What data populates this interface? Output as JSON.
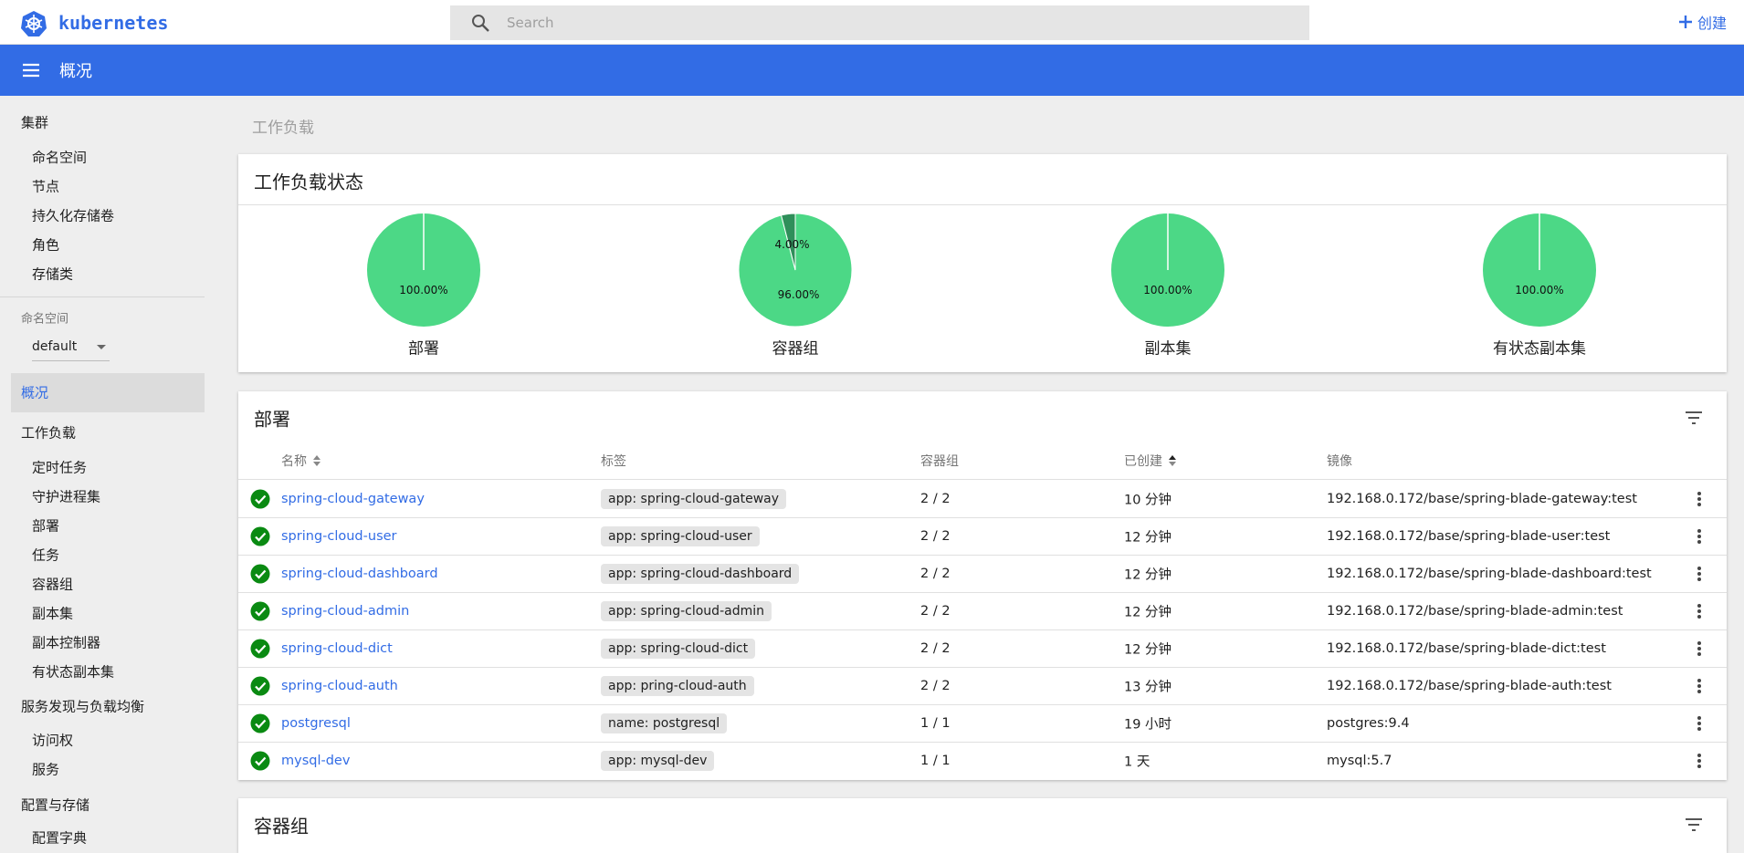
{
  "header": {
    "logo": "kubernetes",
    "search_placeholder": "Search",
    "create": "创建"
  },
  "toolbar": {
    "title": "概况"
  },
  "sidebar": {
    "cluster": "集群",
    "cluster_items": [
      "命名空间",
      "节点",
      "持久化存储卷",
      "角色",
      "存储类"
    ],
    "namespace_label": "命名空间",
    "namespace_value": "default",
    "overview": "概况",
    "workloads": "工作负载",
    "workload_items": [
      "定时任务",
      "守护进程集",
      "部署",
      "任务",
      "容器组",
      "副本集",
      "副本控制器",
      "有状态副本集"
    ],
    "discovery": "服务发现与负载均衡",
    "discovery_items": [
      "访问权",
      "服务"
    ],
    "config": "配置与存储",
    "config_items": [
      "配置字典"
    ]
  },
  "breadcrumb": "工作负载",
  "workload_status": {
    "title": "工作负载状态",
    "charts": [
      {
        "type": "pie",
        "label": "部署",
        "values": [
          100
        ],
        "value_labels": [
          "100.00%"
        ],
        "colors": [
          "#4cd886"
        ]
      },
      {
        "type": "pie",
        "label": "容器组",
        "values": [
          96,
          4
        ],
        "value_labels": [
          "96.00%",
          "4.00%"
        ],
        "colors": [
          "#4cd886",
          "#2f8f5a"
        ]
      },
      {
        "type": "pie",
        "label": "副本集",
        "values": [
          100
        ],
        "value_labels": [
          "100.00%"
        ],
        "colors": [
          "#4cd886"
        ]
      },
      {
        "type": "pie",
        "label": "有状态副本集",
        "values": [
          100
        ],
        "value_labels": [
          "100.00%"
        ],
        "colors": [
          "#4cd886"
        ]
      }
    ]
  },
  "deployments": {
    "title": "部署",
    "columns": [
      "名称",
      "标签",
      "容器组",
      "已创建",
      "镜像"
    ],
    "rows": [
      [
        "spring-cloud-gateway",
        "app: spring-cloud-gateway",
        "2 / 2",
        "10 分钟",
        "192.168.0.172/base/spring-blade-gateway:test"
      ],
      [
        "spring-cloud-user",
        "app: spring-cloud-user",
        "2 / 2",
        "12 分钟",
        "192.168.0.172/base/spring-blade-user:test"
      ],
      [
        "spring-cloud-dashboard",
        "app: spring-cloud-dashboard",
        "2 / 2",
        "12 分钟",
        "192.168.0.172/base/spring-blade-dashboard:test"
      ],
      [
        "spring-cloud-admin",
        "app: spring-cloud-admin",
        "2 / 2",
        "12 分钟",
        "192.168.0.172/base/spring-blade-admin:test"
      ],
      [
        "spring-cloud-dict",
        "app: spring-cloud-dict",
        "2 / 2",
        "12 分钟",
        "192.168.0.172/base/spring-blade-dict:test"
      ],
      [
        "spring-cloud-auth",
        "app: pring-cloud-auth",
        "2 / 2",
        "13 分钟",
        "192.168.0.172/base/spring-blade-auth:test"
      ],
      [
        "postgresql",
        "name: postgresql",
        "1 / 1",
        "19 小时",
        "postgres:9.4"
      ],
      [
        "mysql-dev",
        "app: mysql-dev",
        "1 / 1",
        "1 天",
        "mysql:5.7"
      ]
    ]
  },
  "pods": {
    "title": "容器组"
  }
}
